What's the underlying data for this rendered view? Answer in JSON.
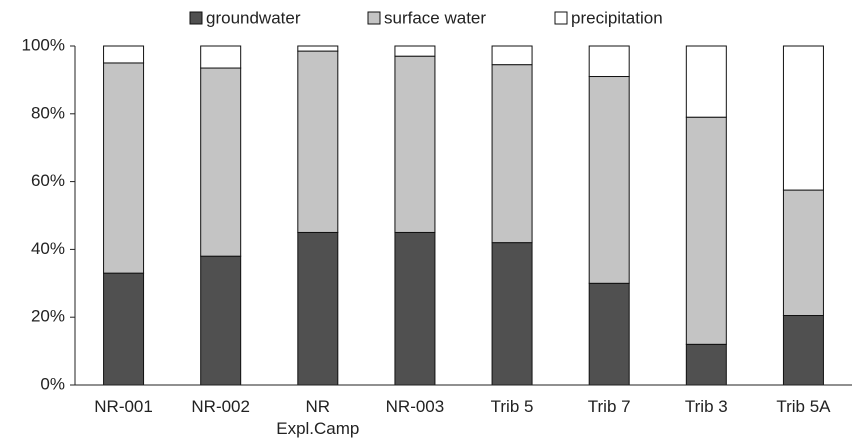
{
  "chart_data": {
    "type": "stacked_bar",
    "categories": [
      "NR-001",
      "NR-002",
      "NR Expl.Camp",
      "NR-003",
      "Trib 5",
      "Trib 7",
      "Trib 3",
      "Trib 5A"
    ],
    "series": [
      {
        "name": "groundwater",
        "color": "#505050",
        "values": [
          33,
          38,
          45,
          45,
          42,
          30,
          12,
          20.5
        ]
      },
      {
        "name": "surface water",
        "color": "#c4c4c4",
        "values": [
          62,
          55.5,
          53.5,
          52,
          52.5,
          61,
          67,
          37
        ]
      },
      {
        "name": "precipitation",
        "color": "#ffffff",
        "values": [
          5,
          6.5,
          1.5,
          3,
          5.5,
          9,
          21,
          42.5
        ]
      }
    ],
    "ylim": [
      0,
      100
    ],
    "yticks": [
      {
        "value": 0,
        "label": "0%"
      },
      {
        "value": 20,
        "label": "20%"
      },
      {
        "value": 40,
        "label": "40%"
      },
      {
        "value": 60,
        "label": "60%"
      },
      {
        "value": 80,
        "label": "80%"
      },
      {
        "value": 100,
        "label": "100%"
      }
    ],
    "grid": false,
    "legend": "top"
  }
}
